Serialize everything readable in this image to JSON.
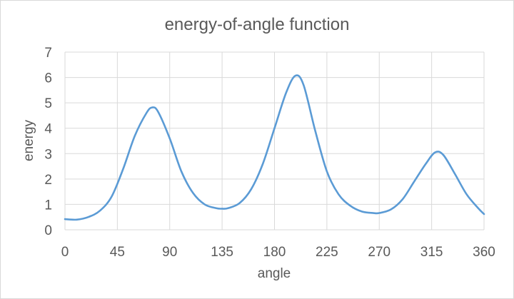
{
  "chart_data": {
    "type": "line",
    "title": "energy-of-angle function",
    "xlabel": "angle",
    "ylabel": "energy",
    "xlim": [
      0,
      360
    ],
    "ylim": [
      0,
      7
    ],
    "xticks": [
      "0",
      "45",
      "90",
      "135",
      "180",
      "225",
      "270",
      "315",
      "360"
    ],
    "yticks": [
      "0",
      "1",
      "2",
      "3",
      "4",
      "5",
      "6",
      "7"
    ],
    "grid": true,
    "legend": "none",
    "series_color": "#5b9bd5",
    "series": [
      {
        "x": [
          0,
          10,
          20,
          30,
          40,
          50,
          60,
          70,
          75,
          80,
          90,
          100,
          110,
          120,
          130,
          135,
          140,
          150,
          160,
          170,
          180,
          190,
          198,
          205,
          215,
          225,
          235,
          245,
          255,
          265,
          270,
          280,
          290,
          300,
          310,
          318,
          325,
          335,
          345,
          355,
          360
        ],
        "values": [
          0.42,
          0.4,
          0.5,
          0.75,
          1.3,
          2.4,
          3.7,
          4.6,
          4.82,
          4.65,
          3.6,
          2.3,
          1.45,
          1.0,
          0.85,
          0.83,
          0.85,
          1.05,
          1.6,
          2.6,
          4.0,
          5.4,
          6.07,
          5.7,
          3.9,
          2.3,
          1.4,
          0.95,
          0.72,
          0.66,
          0.66,
          0.8,
          1.2,
          1.9,
          2.6,
          3.05,
          2.95,
          2.2,
          1.4,
          0.85,
          0.62
        ]
      }
    ]
  }
}
